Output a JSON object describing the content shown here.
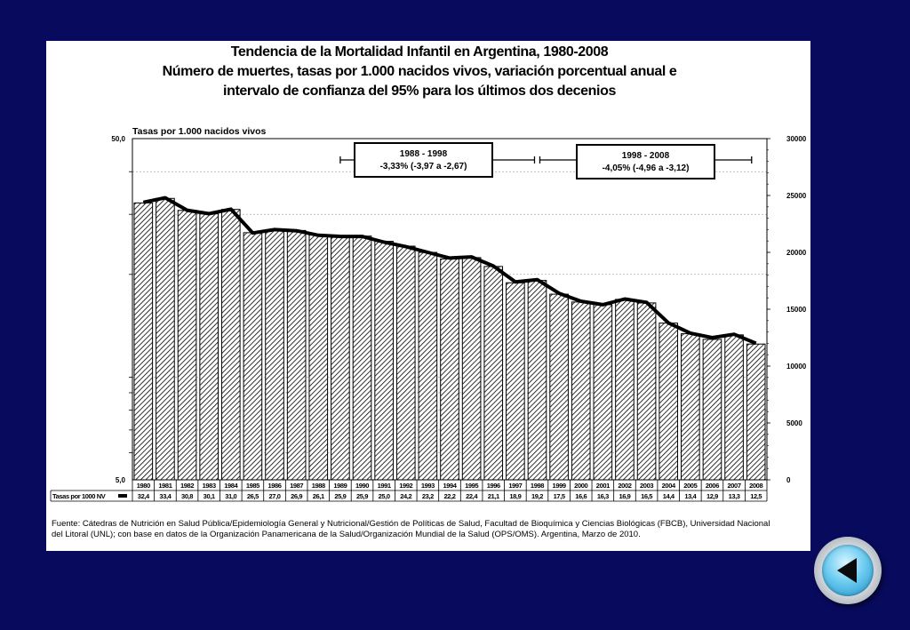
{
  "title_lines": [
    "Tendencia de la Mortalidad Infantil en Argentina, 1980-2008",
    "Número de muertes, tasas por 1.000 nacidos vivos, variación porcentual anual e",
    "intervalo de confianza del 95% para los últimos dos decenios"
  ],
  "chart_data": {
    "type": "bar",
    "categories": [
      "1980",
      "1981",
      "1982",
      "1983",
      "1984",
      "1985",
      "1986",
      "1987",
      "1988",
      "1989",
      "1990",
      "1991",
      "1992",
      "1993",
      "1994",
      "1995",
      "1996",
      "1997",
      "1998",
      "1999",
      "2000",
      "2001",
      "2002",
      "2003",
      "2004",
      "2005",
      "2006",
      "2007",
      "2008"
    ],
    "ylabel": "Tasas por 1.000 nacidos vivos",
    "y_scale": "log",
    "ylim": [
      5.0,
      50.0
    ],
    "y_ticks_labeled": [
      "50,0",
      "5,0"
    ],
    "y2lim": [
      0,
      30000
    ],
    "y2_ticks": [
      30000,
      25000,
      20000,
      15000,
      10000,
      5000,
      0
    ],
    "grid": true,
    "series": [
      {
        "name": "Tasas por 1000 NV",
        "chart_type": "bar",
        "axis": "left",
        "values": [
          32.4,
          33.4,
          30.8,
          30.1,
          31.0,
          26.5,
          27.0,
          26.9,
          26.1,
          25.9,
          25.9,
          25.0,
          24.2,
          23.2,
          22.2,
          22.4,
          21.1,
          18.9,
          19.2,
          17.5,
          16.6,
          16.3,
          16.9,
          16.5,
          14.4,
          13.4,
          12.9,
          13.3,
          12.5
        ],
        "labels": [
          "32,4",
          "33,4",
          "30,8",
          "30,1",
          "31,0",
          "26,5",
          "27,0",
          "26,9",
          "26,1",
          "25,9",
          "25,9",
          "25,0",
          "24,2",
          "23,2",
          "22,2",
          "22,4",
          "21,1",
          "18,9",
          "19,2",
          "17,5",
          "16,6",
          "16,3",
          "16,9",
          "16,5",
          "14,4",
          "13,4",
          "12,9",
          "13,3",
          "12,5"
        ]
      },
      {
        "chart_type": "line",
        "axis": "right",
        "values": [
          24400,
          24800,
          23700,
          23400,
          23800,
          21700,
          22000,
          21900,
          21500,
          21400,
          21400,
          20900,
          20500,
          20000,
          19500,
          19600,
          18800,
          17400,
          17600,
          16400,
          15700,
          15400,
          15900,
          15600,
          13800,
          12900,
          12500,
          12800,
          12000
        ]
      }
    ],
    "annotations": [
      {
        "period": "1988 - 1998",
        "text": "-3,33%  (-3,97 a -2,67)"
      },
      {
        "period": "1998 - 2008",
        "text": "-4,05%  (-4,96 a -3,12)"
      }
    ]
  },
  "footer": {
    "text": "Fuente: Cátedras de Nutrición en Salud Pública/Epidemiología General y Nutricional/Gestión de Políticas de Salud, Facultad de Bioquímica y Ciencias Biológicas (FBCB), Universidad Nacional del Litoral (UNL); con base en datos de la Organización Panamericana de la Salud/Organización Mundial de la Salud (OPS/OMS). Argentina, Marzo de 2010."
  },
  "colors": {
    "background": "#080a5e",
    "panel": "#ffffff",
    "line": "#000000",
    "button_accent": "#1b8fc6"
  },
  "icons": {
    "back_button": "back-arrow-icon"
  }
}
